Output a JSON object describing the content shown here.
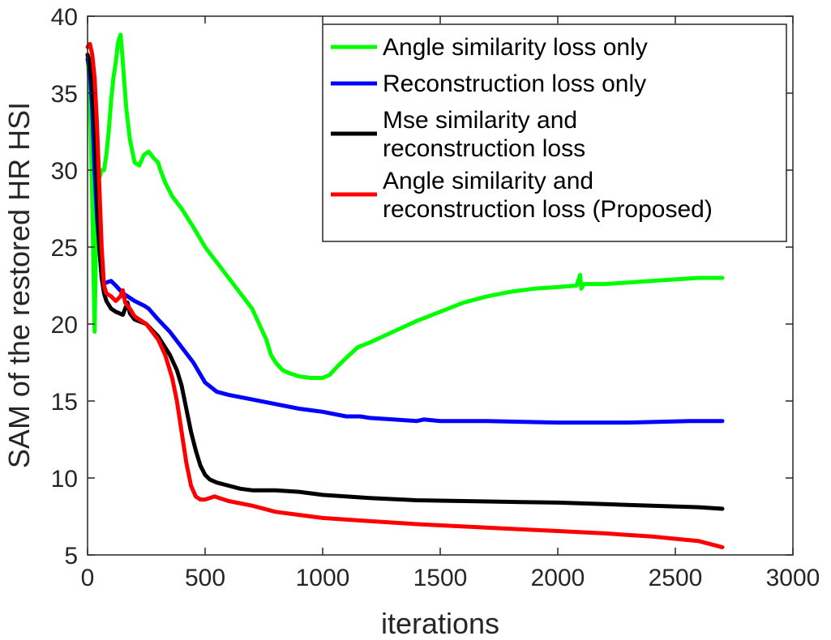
{
  "chart_data": {
    "type": "line",
    "title": "",
    "xlabel": "iterations",
    "ylabel": "SAM of the restored HR HSI",
    "xlim": [
      0,
      3000
    ],
    "ylim": [
      5,
      40
    ],
    "xticks": [
      0,
      500,
      1000,
      1500,
      2000,
      2500,
      3000
    ],
    "yticks": [
      5,
      10,
      15,
      20,
      25,
      30,
      35,
      40
    ],
    "xtick_labels": [
      "0",
      "500",
      "1000",
      "1500",
      "2000",
      "2500",
      "3000"
    ],
    "ytick_labels": [
      "5",
      "10",
      "15",
      "20",
      "25",
      "30",
      "35",
      "40"
    ],
    "grid": false,
    "legend_position": "top-right",
    "series": [
      {
        "name": "Angle similarity loss only",
        "legend_lines": [
          "Angle similarity loss only"
        ],
        "color": "#00ff00",
        "x": [
          0,
          10,
          20,
          30,
          40,
          50,
          60,
          70,
          80,
          90,
          100,
          110,
          120,
          130,
          140,
          145,
          155,
          165,
          180,
          200,
          220,
          240,
          260,
          280,
          300,
          310,
          330,
          360,
          400,
          450,
          500,
          550,
          600,
          650,
          700,
          730,
          760,
          780,
          800,
          830,
          860,
          900,
          950,
          1000,
          1030,
          1060,
          1100,
          1150,
          1200,
          1300,
          1400,
          1500,
          1600,
          1700,
          1800,
          1900,
          2000,
          2080,
          2095,
          2100,
          2110,
          2200,
          2300,
          2400,
          2500,
          2600,
          2700
        ],
        "y": [
          37.5,
          35.0,
          28.0,
          19.5,
          29.0,
          29.5,
          30.0,
          30.0,
          31.0,
          32.5,
          34.5,
          36.0,
          37.0,
          38.3,
          38.8,
          38.0,
          36.0,
          34.0,
          32.0,
          30.5,
          30.3,
          31.0,
          31.2,
          30.8,
          30.5,
          30.0,
          29.2,
          28.3,
          27.5,
          26.3,
          25.0,
          24.0,
          23.0,
          22.0,
          21.0,
          20.0,
          19.0,
          18.0,
          17.5,
          17.0,
          16.8,
          16.6,
          16.5,
          16.5,
          16.7,
          17.2,
          17.8,
          18.5,
          18.8,
          19.5,
          20.2,
          20.8,
          21.4,
          21.8,
          22.1,
          22.3,
          22.4,
          22.5,
          23.2,
          22.3,
          22.6,
          22.6,
          22.7,
          22.8,
          22.9,
          23.0,
          23.0
        ]
      },
      {
        "name": "Reconstruction loss only",
        "legend_lines": [
          "Reconstruction loss only"
        ],
        "color": "#0000ff",
        "x": [
          0,
          10,
          20,
          30,
          40,
          50,
          60,
          70,
          80,
          100,
          120,
          150,
          200,
          240,
          260,
          300,
          350,
          400,
          450,
          500,
          550,
          600,
          700,
          800,
          900,
          1000,
          1100,
          1160,
          1200,
          1300,
          1400,
          1430,
          1500,
          1700,
          2000,
          2300,
          2560,
          2700
        ],
        "y": [
          37.2,
          36.5,
          34.0,
          30.0,
          27.0,
          25.0,
          23.0,
          22.6,
          22.7,
          22.8,
          22.5,
          22.0,
          21.5,
          21.2,
          21.0,
          20.3,
          19.5,
          18.5,
          17.5,
          16.2,
          15.6,
          15.4,
          15.1,
          14.8,
          14.5,
          14.3,
          14.0,
          14.0,
          13.9,
          13.8,
          13.7,
          13.8,
          13.7,
          13.7,
          13.6,
          13.6,
          13.7,
          13.7
        ]
      },
      {
        "name": "Mse similarity and reconstruction loss",
        "legend_lines": [
          "Mse similarity and",
          "reconstruction loss"
        ],
        "color": "#000000",
        "x": [
          0,
          10,
          20,
          30,
          40,
          50,
          60,
          70,
          80,
          100,
          120,
          150,
          170,
          180,
          200,
          250,
          300,
          350,
          380,
          400,
          420,
          440,
          460,
          480,
          500,
          520,
          550,
          600,
          650,
          700,
          800,
          900,
          1000,
          1200,
          1400,
          1600,
          1800,
          2000,
          2200,
          2400,
          2600,
          2700
        ],
        "y": [
          37.5,
          37.0,
          35.5,
          33.0,
          29.0,
          25.0,
          23.0,
          22.0,
          21.5,
          21.0,
          20.8,
          20.6,
          21.4,
          20.7,
          20.3,
          20.0,
          19.2,
          18.0,
          17.0,
          16.0,
          14.5,
          13.0,
          11.8,
          10.8,
          10.2,
          9.9,
          9.7,
          9.5,
          9.3,
          9.2,
          9.2,
          9.1,
          8.9,
          8.7,
          8.55,
          8.5,
          8.45,
          8.4,
          8.3,
          8.2,
          8.1,
          8.0
        ]
      },
      {
        "name": "Angle similarity and reconstruction loss (Proposed)",
        "legend_lines": [
          "Angle similarity and",
          "reconstruction loss (Proposed)"
        ],
        "color": "#ff0000",
        "x": [
          0,
          10,
          20,
          30,
          40,
          50,
          60,
          70,
          80,
          100,
          120,
          140,
          150,
          160,
          180,
          200,
          250,
          300,
          330,
          360,
          380,
          400,
          420,
          440,
          460,
          480,
          500,
          520,
          540,
          560,
          600,
          700,
          800,
          1000,
          1200,
          1400,
          1600,
          1800,
          2000,
          2200,
          2400,
          2600,
          2700
        ],
        "y": [
          38.0,
          38.2,
          37.5,
          36.0,
          33.0,
          29.0,
          25.0,
          22.5,
          22.0,
          21.8,
          21.5,
          21.8,
          22.2,
          21.4,
          21.0,
          20.5,
          20.0,
          19.0,
          18.0,
          16.5,
          15.0,
          13.0,
          11.0,
          9.5,
          8.8,
          8.6,
          8.6,
          8.7,
          8.8,
          8.7,
          8.5,
          8.2,
          7.8,
          7.4,
          7.2,
          7.0,
          6.85,
          6.7,
          6.55,
          6.4,
          6.2,
          5.9,
          5.5
        ]
      }
    ]
  }
}
